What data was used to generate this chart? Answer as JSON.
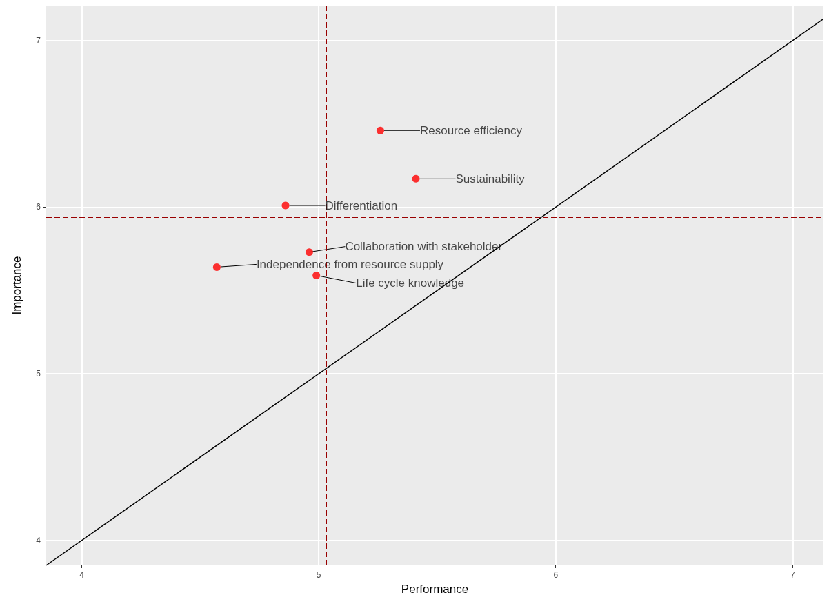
{
  "chart_data": {
    "type": "scatter",
    "xlabel": "Performance",
    "ylabel": "Importance",
    "series": [
      {
        "color": "#ff0000",
        "marker": "circle",
        "x": [
          5.26,
          5.41,
          4.86,
          4.96,
          4.57,
          4.99
        ],
        "values": [
          6.46,
          6.17,
          6.01,
          5.73,
          5.64,
          5.59
        ]
      },
      {
        "type": "line",
        "color": "#000000",
        "x": [
          3.85,
          7.13
        ],
        "values": [
          3.85,
          7.13
        ]
      }
    ],
    "annotations": [
      "Resource efficiency",
      "Sustainability",
      "Differentiation",
      {
        "text": "Collaboration with stakeholder",
        "x": 4.96,
        "y": 5.73
      },
      "Independence from resource supply",
      "Life cycle knowledge"
    ],
    "ref_lines": [
      {
        "axis": "x",
        "value": 5.03,
        "color": "#990000",
        "line_style": "dashed"
      },
      {
        "axis": "y",
        "value": 5.94,
        "color": "#990000",
        "line_style": "dashed"
      }
    ],
    "xlim": [
      3.85,
      7.13
    ],
    "ylim": [
      3.85,
      7.21
    ],
    "xticks": [
      4,
      5,
      6,
      7
    ],
    "yticks": [
      4,
      5,
      6,
      7
    ],
    "grid": true
  }
}
